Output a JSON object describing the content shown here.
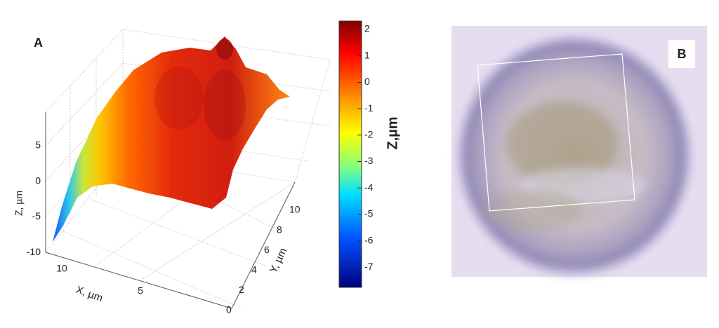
{
  "panel_a": {
    "label": "A",
    "z_axis": {
      "label": "Z, µm",
      "ticks": [
        "5",
        "0",
        "-5",
        "-10"
      ]
    },
    "x_axis": {
      "label": "X, µm",
      "ticks": [
        "10",
        "5"
      ]
    },
    "y_axis": {
      "label": "Y, µm",
      "ticks": [
        "0",
        "2",
        "4",
        "6",
        "8",
        "10"
      ]
    },
    "colorbar": {
      "label": "Z,µm",
      "ticks": [
        "2",
        "1",
        "0",
        "-1",
        "-2",
        "-3",
        "-4",
        "-5",
        "-6",
        "-7"
      ]
    }
  },
  "panel_b": {
    "label": "B"
  }
}
